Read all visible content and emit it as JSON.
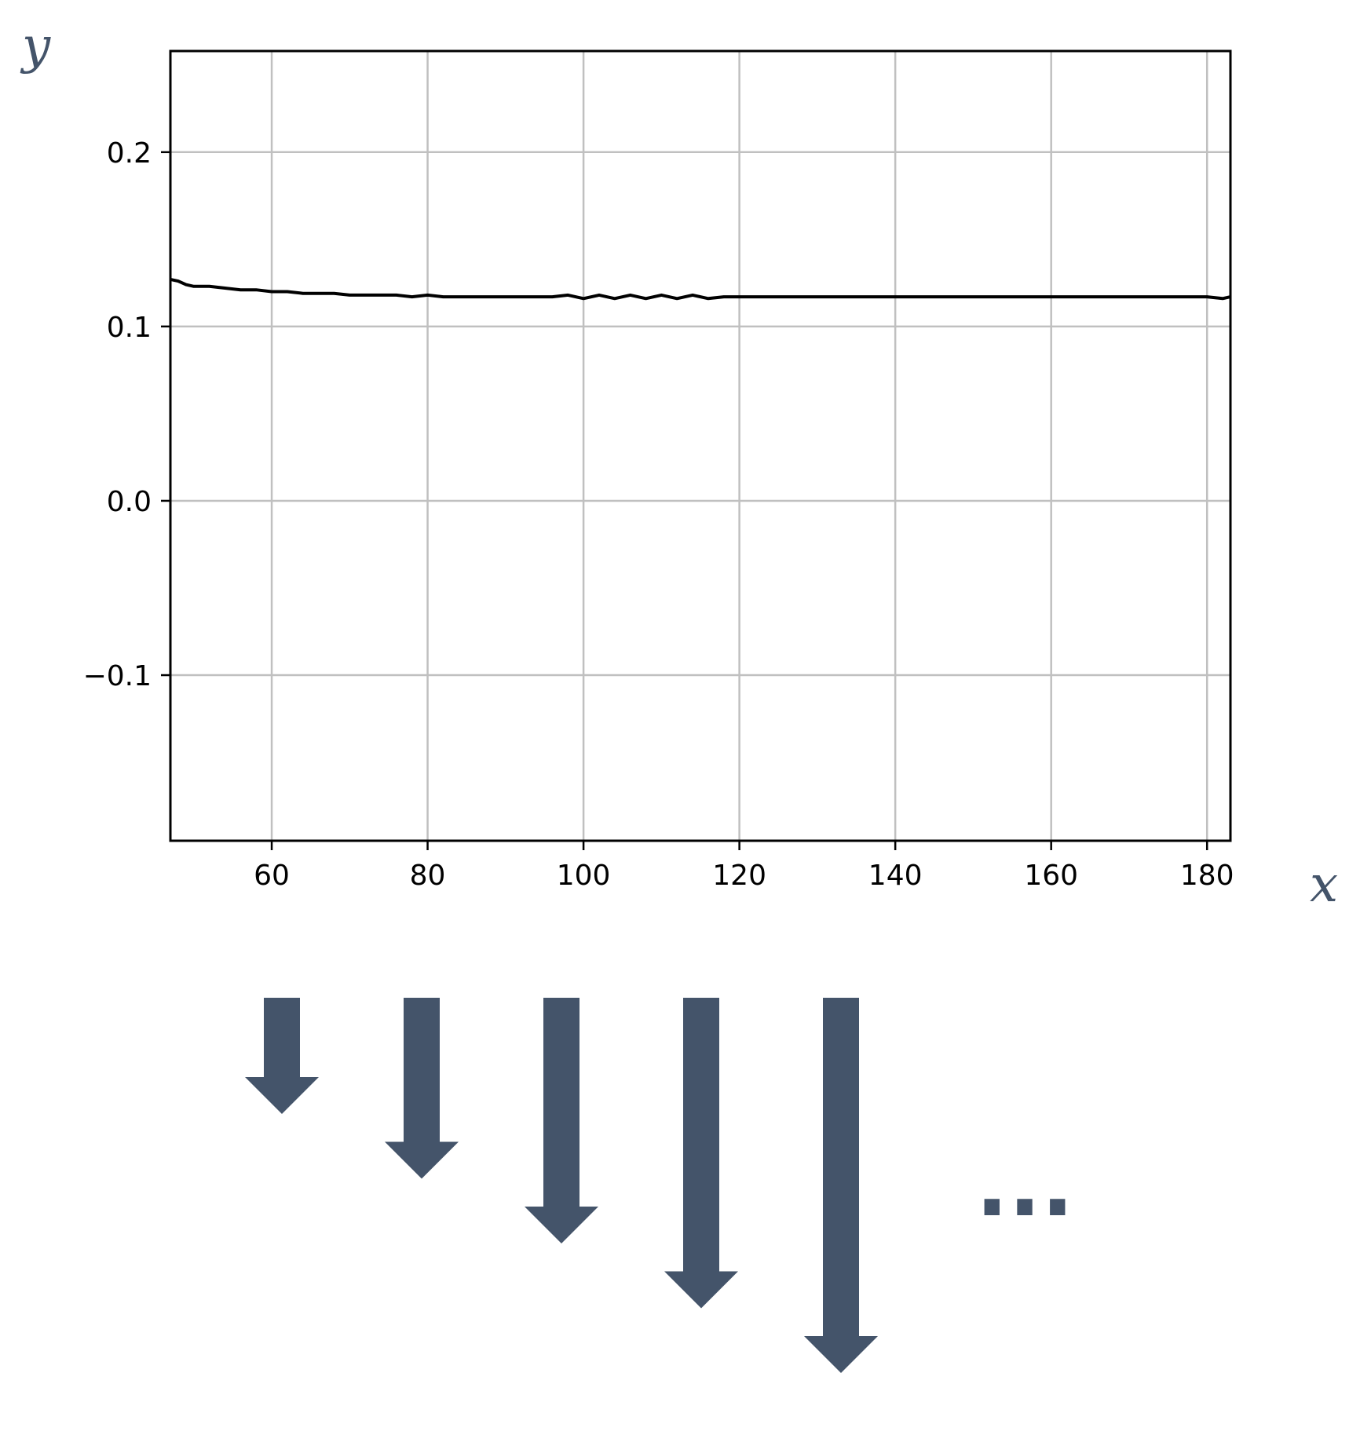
{
  "colors": {
    "line": "#000000",
    "grid": "#c0c0c0",
    "frame": "#000000",
    "arrow": "#44546a",
    "axis_var": "#44546a"
  },
  "chart_data": {
    "type": "line",
    "title": "",
    "xlabel": "x",
    "ylabel": "y",
    "xlim": [
      47,
      183
    ],
    "ylim": [
      -0.195,
      0.258
    ],
    "xticks": [
      60,
      80,
      100,
      120,
      140,
      160,
      180
    ],
    "xtick_labels": [
      "60",
      "80",
      "100",
      "120",
      "140",
      "160",
      "180"
    ],
    "yticks": [
      0.2,
      0.1,
      0.0,
      -0.1
    ],
    "ytick_labels": [
      "0.2",
      "0.1",
      "0.0",
      "−0.1"
    ],
    "grid": true,
    "series": [
      {
        "x": [
          47,
          48,
          49,
          50,
          52,
          54,
          56,
          58,
          60,
          62,
          64,
          66,
          68,
          70,
          72,
          74,
          76,
          78,
          80,
          82,
          84,
          86,
          88,
          90,
          92,
          94,
          96,
          98,
          100,
          102,
          104,
          106,
          108,
          110,
          112,
          114,
          116,
          118,
          120,
          122,
          124,
          126,
          128,
          130,
          132,
          134,
          136,
          138,
          140,
          142,
          144,
          146,
          148,
          150,
          152,
          154,
          156,
          158,
          160,
          162,
          164,
          166,
          168,
          170,
          172,
          174,
          176,
          178,
          180,
          182,
          183
        ],
        "y": [
          0.127,
          0.126,
          0.124,
          0.123,
          0.123,
          0.122,
          0.121,
          0.121,
          0.12,
          0.12,
          0.119,
          0.119,
          0.119,
          0.118,
          0.118,
          0.118,
          0.118,
          0.117,
          0.118,
          0.117,
          0.117,
          0.117,
          0.117,
          0.117,
          0.117,
          0.117,
          0.117,
          0.118,
          0.116,
          0.118,
          0.116,
          0.118,
          0.116,
          0.118,
          0.116,
          0.118,
          0.116,
          0.117,
          0.117,
          0.117,
          0.117,
          0.117,
          0.117,
          0.117,
          0.117,
          0.117,
          0.117,
          0.117,
          0.117,
          0.117,
          0.117,
          0.117,
          0.117,
          0.117,
          0.117,
          0.117,
          0.117,
          0.117,
          0.117,
          0.117,
          0.117,
          0.117,
          0.117,
          0.117,
          0.117,
          0.117,
          0.117,
          0.117,
          0.117,
          0.116,
          0.117
        ]
      }
    ]
  },
  "arrows": {
    "lengths": [
      1,
      2,
      3,
      4,
      5
    ],
    "continuation": "..."
  }
}
